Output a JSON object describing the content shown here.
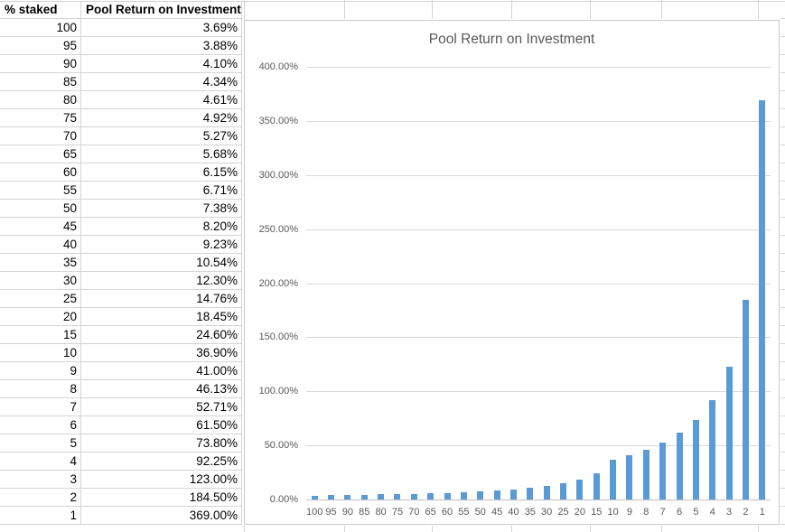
{
  "table": {
    "headers": {
      "staked": "% staked",
      "roi": "Pool Return on Investment"
    },
    "rows": [
      [
        "100",
        "3.69%"
      ],
      [
        "95",
        "3.88%"
      ],
      [
        "90",
        "4.10%"
      ],
      [
        "85",
        "4.34%"
      ],
      [
        "80",
        "4.61%"
      ],
      [
        "75",
        "4.92%"
      ],
      [
        "70",
        "5.27%"
      ],
      [
        "65",
        "5.68%"
      ],
      [
        "60",
        "6.15%"
      ],
      [
        "55",
        "6.71%"
      ],
      [
        "50",
        "7.38%"
      ],
      [
        "45",
        "8.20%"
      ],
      [
        "40",
        "9.23%"
      ],
      [
        "35",
        "10.54%"
      ],
      [
        "30",
        "12.30%"
      ],
      [
        "25",
        "14.76%"
      ],
      [
        "20",
        "18.45%"
      ],
      [
        "15",
        "24.60%"
      ],
      [
        "10",
        "36.90%"
      ],
      [
        "9",
        "41.00%"
      ],
      [
        "8",
        "46.13%"
      ],
      [
        "7",
        "52.71%"
      ],
      [
        "6",
        "61.50%"
      ],
      [
        "5",
        "73.80%"
      ],
      [
        "4",
        "92.25%"
      ],
      [
        "3",
        "123.00%"
      ],
      [
        "2",
        "184.50%"
      ],
      [
        "1",
        "369.00%"
      ]
    ]
  },
  "chart_data": {
    "type": "bar",
    "title": "Pool Return on Investment",
    "categories": [
      "100",
      "95",
      "90",
      "85",
      "80",
      "75",
      "70",
      "65",
      "60",
      "55",
      "50",
      "45",
      "40",
      "35",
      "30",
      "25",
      "20",
      "15",
      "10",
      "9",
      "8",
      "7",
      "6",
      "5",
      "4",
      "3",
      "2",
      "1"
    ],
    "values": [
      3.69,
      3.88,
      4.1,
      4.34,
      4.61,
      4.92,
      5.27,
      5.68,
      6.15,
      6.71,
      7.38,
      8.2,
      9.23,
      10.54,
      12.3,
      14.76,
      18.45,
      24.6,
      36.9,
      41.0,
      46.13,
      52.71,
      61.5,
      73.8,
      92.25,
      123.0,
      184.5,
      369.0
    ],
    "xlabel": "",
    "ylabel": "",
    "ylim": [
      0,
      400
    ],
    "ytick_step": 50,
    "ytick_labels": [
      "0.00%",
      "50.00%",
      "100.00%",
      "150.00%",
      "200.00%",
      "250.00%",
      "300.00%",
      "350.00%",
      "400.00%"
    ],
    "grid": true,
    "legend_position": "none",
    "bar_color": "#5b9bd5"
  },
  "colors": {
    "bar": "#5b9bd5",
    "chart_gridline": "#d9d9d9",
    "axis_text": "#595959",
    "sheet_gridline": "#d4d4d4",
    "chart_border": "#c8c8c8"
  }
}
